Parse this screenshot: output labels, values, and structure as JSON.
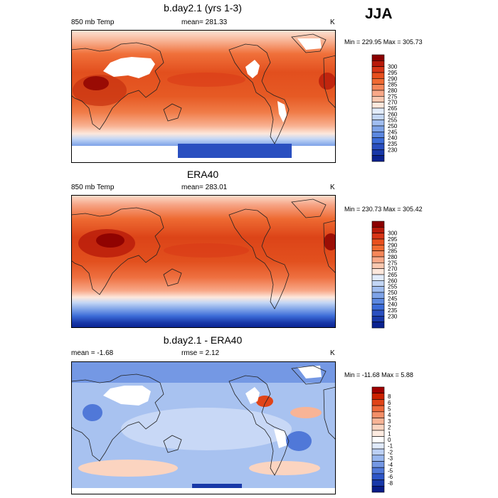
{
  "season": "JJA",
  "panels": [
    {
      "title": "b.day2.1 (yrs 1-3)",
      "left_label": "850 mb Temp",
      "center_label": "mean= 281.33",
      "units": "K",
      "minmax": "Min = 229.95 Max = 305.73",
      "colorbar_labels": [
        "300",
        "295",
        "290",
        "285",
        "280",
        "275",
        "270",
        "265",
        "260",
        "255",
        "250",
        "245",
        "240",
        "235",
        "230"
      ],
      "colorbar_colors": [
        "#8b0000",
        "#b81a0a",
        "#d83516",
        "#e8501e",
        "#f06a32",
        "#f5875a",
        "#f9a888",
        "#fbc8b0",
        "#fde8dc",
        "#e2ecfb",
        "#c3d6f5",
        "#a0bdf0",
        "#7ea3e8",
        "#5c88e0",
        "#3c6cd8",
        "#2a4fc0",
        "#1838a8",
        "#0a2290"
      ]
    },
    {
      "title": "ERA40",
      "left_label": "850 mb Temp",
      "center_label": "mean= 283.01",
      "units": "K",
      "minmax": "Min = 230.73 Max = 305.42",
      "colorbar_labels": [
        "300",
        "295",
        "290",
        "285",
        "280",
        "275",
        "270",
        "265",
        "260",
        "255",
        "250",
        "245",
        "240",
        "235",
        "230"
      ],
      "colorbar_colors": [
        "#8b0000",
        "#b81a0a",
        "#d83516",
        "#e8501e",
        "#f06a32",
        "#f5875a",
        "#f9a888",
        "#fbc8b0",
        "#fde8dc",
        "#e2ecfb",
        "#c3d6f5",
        "#a0bdf0",
        "#7ea3e8",
        "#5c88e0",
        "#3c6cd8",
        "#2a4fc0",
        "#1838a8",
        "#0a2290"
      ]
    },
    {
      "title": "b.day2.1 - ERA40",
      "left_label": "mean =  -1.68",
      "center_label": "rmse =   2.12",
      "units": "K",
      "minmax": "Min = -11.68 Max =   5.88",
      "colorbar_labels": [
        "8",
        "6",
        "5",
        "4",
        "3",
        "2",
        "1",
        "0",
        "-1",
        "-2",
        "-3",
        "-4",
        "-5",
        "-6",
        "-8"
      ],
      "colorbar_colors": [
        "#a00000",
        "#cc2200",
        "#e04418",
        "#ee6a3c",
        "#f48f68",
        "#f8b496",
        "#fbd4c0",
        "#fdebe0",
        "#ffffff",
        "#e0eafb",
        "#bcd0f5",
        "#98b6ee",
        "#7498e4",
        "#5078d8",
        "#2e56c8",
        "#1838a8",
        "#081c88"
      ]
    }
  ]
}
